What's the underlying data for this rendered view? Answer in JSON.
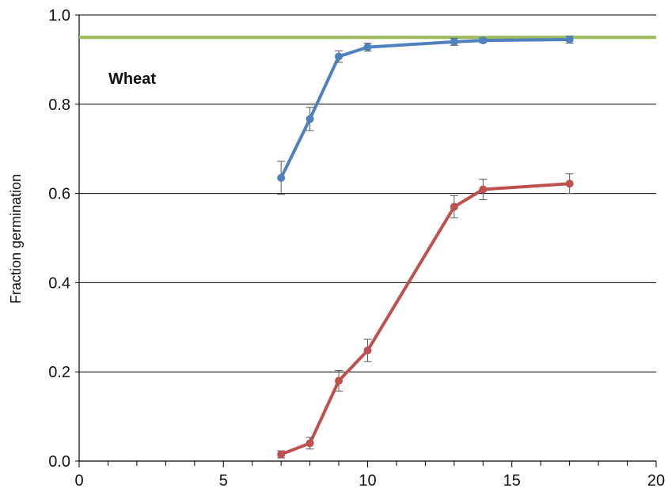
{
  "chart_data": {
    "type": "line",
    "title": "",
    "xlabel": "",
    "ylabel": "Fraction germination",
    "xlim": [
      0,
      20
    ],
    "ylim": [
      0.0,
      1.0
    ],
    "x_major_ticks": [
      0,
      5,
      10,
      15,
      20
    ],
    "x_tick_labels": [
      "0",
      "5",
      "10",
      "15",
      "20"
    ],
    "x_minor_step": 1,
    "y_ticks": [
      0.0,
      0.2,
      0.4,
      0.6,
      0.8,
      1.0
    ],
    "y_tick_labels": [
      "0.0",
      "0.2",
      "0.4",
      "0.6",
      "0.8",
      "1.0"
    ],
    "grid": "horizontal",
    "legend": "none",
    "annotation": "Wheat",
    "reference_line": {
      "y": 0.95,
      "color": "#9BBB59"
    },
    "series": [
      {
        "color": "#4F81BD",
        "x": [
          7,
          8,
          9,
          10,
          13,
          14,
          17
        ],
        "y": [
          0.635,
          0.767,
          0.907,
          0.928,
          0.94,
          0.943,
          0.945
        ],
        "err": [
          0.037,
          0.026,
          0.013,
          0.009,
          0.008,
          0.005,
          0.008
        ]
      },
      {
        "color": "#C0504D",
        "x": [
          7,
          8,
          9,
          10,
          13,
          14,
          17
        ],
        "y": [
          0.015,
          0.04,
          0.18,
          0.248,
          0.57,
          0.609,
          0.622
        ],
        "err": [
          0.008,
          0.013,
          0.023,
          0.025,
          0.025,
          0.023,
          0.022
        ]
      }
    ]
  }
}
